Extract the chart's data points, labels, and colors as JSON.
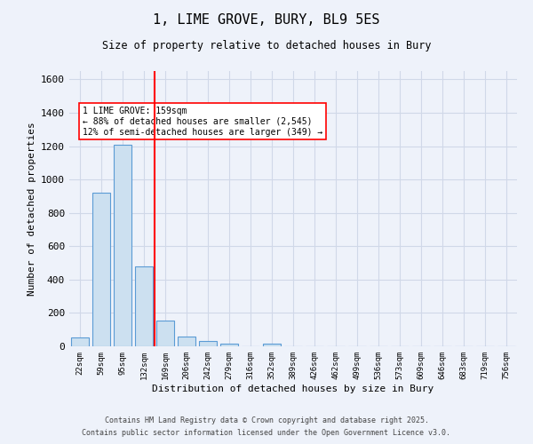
{
  "title1": "1, LIME GROVE, BURY, BL9 5ES",
  "title2": "Size of property relative to detached houses in Bury",
  "xlabel": "Distribution of detached houses by size in Bury",
  "ylabel": "Number of detached properties",
  "bar_labels": [
    "22sqm",
    "59sqm",
    "95sqm",
    "132sqm",
    "169sqm",
    "206sqm",
    "242sqm",
    "279sqm",
    "316sqm",
    "352sqm",
    "389sqm",
    "426sqm",
    "462sqm",
    "499sqm",
    "536sqm",
    "573sqm",
    "609sqm",
    "646sqm",
    "683sqm",
    "719sqm",
    "756sqm"
  ],
  "bar_values": [
    55,
    920,
    1210,
    480,
    155,
    60,
    30,
    15,
    0,
    15,
    0,
    0,
    0,
    0,
    0,
    0,
    0,
    0,
    0,
    0,
    0
  ],
  "bar_color": "#cce0f0",
  "bar_edge_color": "#5b9bd5",
  "grid_color": "#d0d8e8",
  "background_color": "#eef2fa",
  "vline_x": 3.5,
  "vline_color": "red",
  "annotation_text": "1 LIME GROVE: 159sqm\n← 88% of detached houses are smaller (2,545)\n12% of semi-detached houses are larger (349) →",
  "annotation_box_color": "white",
  "annotation_box_edge": "red",
  "ylim": [
    0,
    1650
  ],
  "yticks": [
    0,
    200,
    400,
    600,
    800,
    1000,
    1200,
    1400,
    1600
  ],
  "footer1": "Contains HM Land Registry data © Crown copyright and database right 2025.",
  "footer2": "Contains public sector information licensed under the Open Government Licence v3.0."
}
